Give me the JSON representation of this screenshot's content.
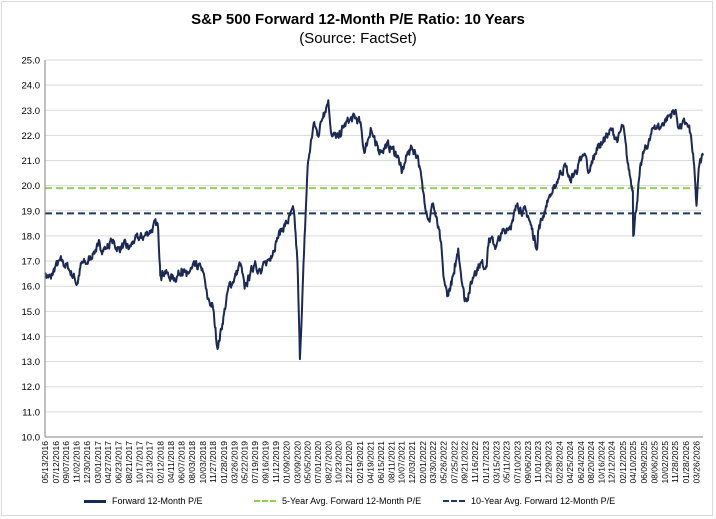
{
  "colors": {
    "pe_line": "#1b2a55",
    "avg5": "#92d050",
    "avg10": "#1f3864",
    "grid": "#d9d9d9",
    "axis": "#808080"
  },
  "chart_data": {
    "type": "line",
    "title": "S&P 500 Forward 12-Month P/E Ratio: 10 Years",
    "subtitle": "(Source: FactSet)",
    "xlabel": "",
    "ylabel": "",
    "ylim": [
      10.0,
      25.0
    ],
    "y_ticks": [
      "10.0",
      "11.0",
      "12.0",
      "13.0",
      "14.0",
      "15.0",
      "16.0",
      "17.0",
      "18.0",
      "19.0",
      "20.0",
      "21.0",
      "22.0",
      "23.0",
      "24.0",
      "25.0"
    ],
    "x_ticks": [
      "05/13/2016",
      "07/12/2016",
      "09/07/2016",
      "11/02/2016",
      "12/30/2016",
      "03/01/2017",
      "04/27/2017",
      "06/23/2017",
      "08/21/2017",
      "10/17/2017",
      "12/13/2017",
      "02/12/2018",
      "04/11/2018",
      "06/07/2018",
      "08/03/2018",
      "10/03/2018",
      "11/27/2018",
      "01/28/2019",
      "03/26/2019",
      "05/22/2019",
      "07/19/2019",
      "09/16/2019",
      "11/12/2019",
      "01/09/2020",
      "03/09/2020",
      "05/05/2020",
      "07/01/2020",
      "08/27/2020",
      "10/23/2020",
      "12/21/2020",
      "02/19/2021",
      "04/19/2021",
      "06/15/2021",
      "08/11/2021",
      "10/07/2021",
      "12/03/2021",
      "02/01/2022",
      "03/30/2022",
      "05/26/2022",
      "07/25/2022",
      "09/21/2022",
      "11/16/2022",
      "01/17/2023",
      "03/15/2023",
      "05/11/2023",
      "07/10/2023",
      "09/06/2023",
      "11/01/2023",
      "12/29/2023",
      "02/28/2024",
      "04/25/2024",
      "06/24/2024",
      "08/20/2024",
      "10/16/2024",
      "12/12/2024",
      "02/12/2025",
      "04/10/2025",
      "06/09/2025",
      "08/06/2025",
      "10/02/2025",
      "11/28/2025",
      "01/28/2026",
      "03/26/2026"
    ],
    "legend_position": "bottom",
    "grid": "horizontal",
    "series": [
      {
        "name": "Forward 12-Month P/E",
        "x": [
          "2016-05-13",
          "2016-06-15",
          "2016-07-10",
          "2016-08-15",
          "2016-09-20",
          "2016-10-25",
          "2016-11-07",
          "2016-11-30",
          "2016-12-30",
          "2017-02-01",
          "2017-03-01",
          "2017-04-15",
          "2017-05-15",
          "2017-06-23",
          "2017-07-20",
          "2017-08-21",
          "2017-09-20",
          "2017-10-17",
          "2017-11-15",
          "2017-12-13",
          "2018-01-26",
          "2018-02-08",
          "2018-02-12",
          "2018-03-09",
          "2018-04-02",
          "2018-05-15",
          "2018-06-07",
          "2018-07-05",
          "2018-08-03",
          "2018-09-20",
          "2018-10-03",
          "2018-10-29",
          "2018-11-27",
          "2018-12-24",
          "2019-01-28",
          "2019-02-25",
          "2019-03-26",
          "2019-04-30",
          "2019-05-22",
          "2019-06-20",
          "2019-07-19",
          "2019-08-20",
          "2019-09-16",
          "2019-10-15",
          "2019-11-12",
          "2019-12-16",
          "2020-01-09",
          "2020-02-19",
          "2020-03-09",
          "2020-03-23",
          "2020-04-15",
          "2020-05-05",
          "2020-06-08",
          "2020-07-01",
          "2020-08-01",
          "2020-08-27",
          "2020-09-15",
          "2020-10-23",
          "2020-11-15",
          "2020-12-21",
          "2021-01-25",
          "2021-02-19",
          "2021-03-15",
          "2021-04-19",
          "2021-05-15",
          "2021-06-15",
          "2021-07-15",
          "2021-08-11",
          "2021-09-15",
          "2021-10-07",
          "2021-11-15",
          "2021-12-03",
          "2022-01-04",
          "2022-02-01",
          "2022-03-08",
          "2022-03-30",
          "2022-05-10",
          "2022-05-26",
          "2022-06-16",
          "2022-07-25",
          "2022-08-16",
          "2022-09-21",
          "2022-10-12",
          "2022-11-16",
          "2022-12-15",
          "2023-01-17",
          "2023-02-02",
          "2023-03-15",
          "2023-04-15",
          "2023-05-11",
          "2023-06-15",
          "2023-07-10",
          "2023-08-10",
          "2023-09-06",
          "2023-10-27",
          "2023-11-01",
          "2023-12-15",
          "2023-12-29",
          "2024-02-01",
          "2024-02-28",
          "2024-04-01",
          "2024-04-25",
          "2024-05-30",
          "2024-06-24",
          "2024-07-20",
          "2024-08-05",
          "2024-08-20",
          "2024-09-20",
          "2024-10-16",
          "2024-11-15",
          "2024-12-12",
          "2025-01-15",
          "2025-02-12",
          "2025-03-10",
          "2025-04-08",
          "2025-04-10",
          "2025-05-15",
          "2025-06-09",
          "2025-07-10",
          "2025-08-06",
          "2025-09-05",
          "2025-10-02",
          "2025-10-29",
          "2025-11-28",
          "2025-12-20",
          "2026-01-28",
          "2026-02-20",
          "2026-03-10",
          "2026-03-26",
          "2026-04-10",
          "2026-05-01"
        ],
        "values": [
          16.5,
          16.3,
          16.8,
          17.0,
          16.7,
          16.3,
          16.1,
          16.9,
          16.9,
          17.3,
          17.6,
          17.5,
          17.8,
          17.5,
          17.6,
          17.5,
          17.8,
          17.9,
          18.0,
          18.2,
          18.5,
          16.8,
          16.5,
          16.6,
          16.3,
          16.4,
          16.7,
          16.4,
          16.7,
          16.8,
          16.6,
          15.5,
          15.2,
          13.5,
          14.9,
          16.0,
          16.3,
          16.9,
          15.9,
          16.4,
          17.0,
          16.5,
          16.9,
          17.2,
          17.8,
          18.3,
          18.5,
          19.0,
          17.0,
          13.1,
          17.3,
          20.8,
          22.5,
          22.0,
          22.9,
          23.4,
          22.0,
          21.9,
          22.3,
          22.6,
          22.7,
          22.5,
          21.3,
          22.3,
          21.6,
          21.4,
          21.6,
          21.5,
          21.2,
          20.5,
          21.4,
          21.5,
          21.2,
          19.8,
          18.6,
          19.3,
          17.8,
          16.4,
          15.6,
          16.5,
          17.5,
          15.4,
          15.7,
          16.6,
          16.9,
          16.8,
          17.9,
          17.6,
          18.1,
          18.3,
          18.6,
          19.3,
          19.0,
          18.8,
          17.5,
          18.2,
          19.2,
          19.5,
          19.9,
          20.5,
          20.8,
          20.2,
          20.6,
          21.0,
          21.2,
          20.5,
          20.8,
          21.5,
          21.7,
          22.0,
          22.2,
          21.8,
          22.4,
          20.9,
          19.8,
          18.0,
          20.4,
          21.4,
          21.8,
          22.4,
          22.3,
          22.6,
          22.8,
          23.0,
          22.3,
          22.5,
          22.1,
          21.0,
          19.2,
          20.8,
          21.2
        ]
      },
      {
        "name": "5-Year Avg. Forward 12-Month P/E",
        "constant": 19.9
      },
      {
        "name": "10-Year Avg. Forward 12-Month P/E",
        "constant": 18.9
      }
    ]
  }
}
